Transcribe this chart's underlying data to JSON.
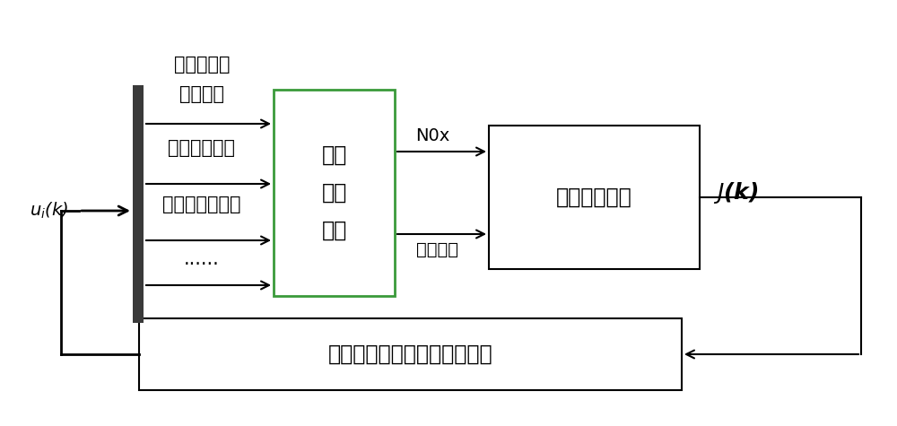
{
  "bg_color": "#ffffff",
  "box_color": "#ffffff",
  "box_edge_color": "#000000",
  "dark_bar_color": "#3a3a3a",
  "green_color": "#3a9a3a",
  "arrow_color": "#000000",
  "label_ui": "$u_i$(k)",
  "label_jk": "$J$(k)",
  "label_nox": "N0x",
  "label_boiler_efficiency": "锅炉效率",
  "label_box1_line1": "锅炉",
  "label_box1_line2": "燃烧",
  "label_box1_line3": "系统",
  "label_box2": "性能指标函数",
  "label_box3": "基于数值优化的极值搜索算法",
  "label_input1": "烟气含氧量",
  "label_input2": "定值偏置",
  "label_input3": "辅助风门开度",
  "label_input4": "给煤机转速偏置",
  "label_dots": "······",
  "figsize": [
    10.0,
    4.75
  ],
  "dpi": 100
}
